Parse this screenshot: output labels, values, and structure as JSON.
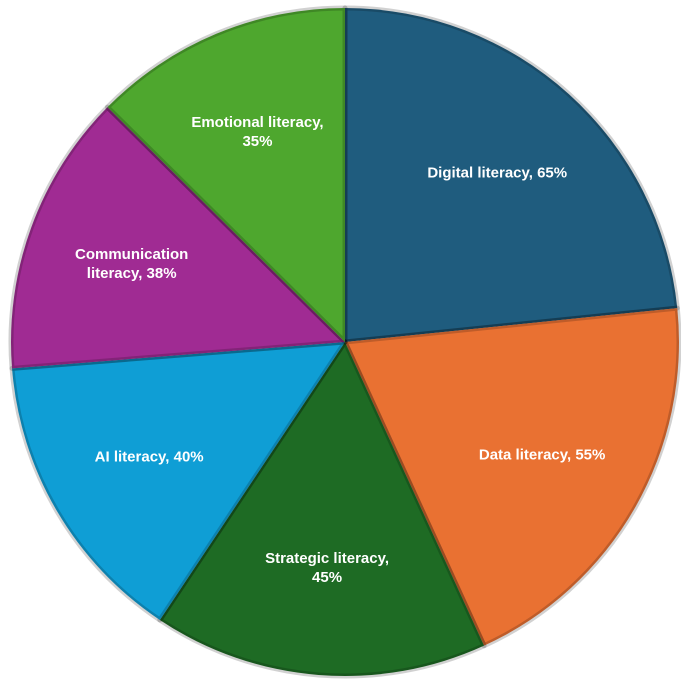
{
  "chart_data": {
    "type": "pie",
    "values": [
      65,
      55,
      45,
      40,
      38,
      35
    ],
    "value_labels": [
      "Digital literacy, 65%",
      "Data literacy, 55%",
      "Strategic literacy, 45%",
      "AI literacy, 40%",
      "Communication literacy, 38%",
      "Emotional literacy, 35%"
    ],
    "colors": [
      "#1f5c7e",
      "#e97132",
      "#1e6b24",
      "#0f9ed5",
      "#a02b93",
      "#4ea72e"
    ]
  }
}
